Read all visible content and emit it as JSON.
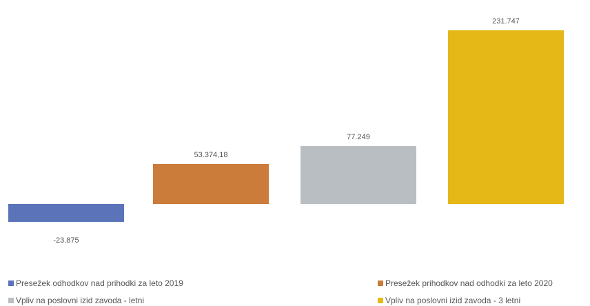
{
  "chart_data": {
    "type": "bar",
    "title": "",
    "xlabel": "",
    "ylabel": "",
    "grid": false,
    "legend_position": "bottom",
    "series": [
      {
        "name": "Presežek odhodkov nad prihodki za leto 2019",
        "value": -23875,
        "label": "-23.875",
        "color": "#5b73b9"
      },
      {
        "name": "Presežek prihodkov nad odhodki za leto 2020",
        "value": 53374.18,
        "label": "53.374,18",
        "color": "#cc7c3a"
      },
      {
        "name": "Vpliv na poslovni izid zavoda - letni",
        "value": 77249,
        "label": "77.249",
        "color": "#b9bec2"
      },
      {
        "name": "Vpliv na poslovni izid zavoda - 3 letni",
        "value": 231747,
        "label": "231.747",
        "color": "#e5b817"
      }
    ]
  }
}
